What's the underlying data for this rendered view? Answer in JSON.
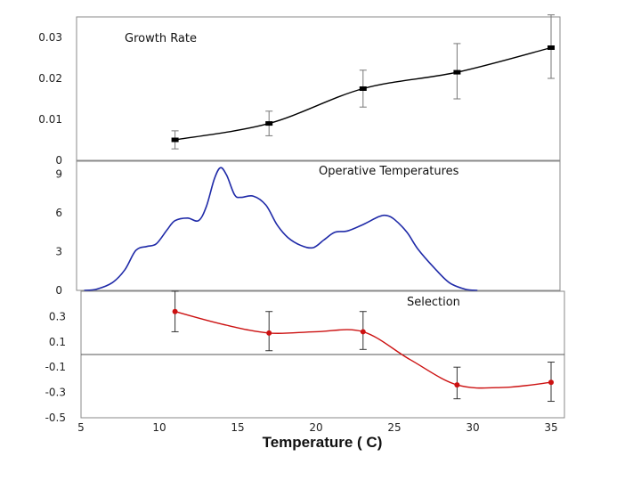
{
  "chart_data": [
    {
      "type": "line",
      "title": "Growth Rate",
      "ylim": [
        0,
        0.035
      ],
      "yticks": [
        0,
        0.01,
        0.02,
        0.03
      ],
      "ytick_labels": [
        "0",
        "0.01",
        "0.02",
        "0.03"
      ],
      "series": [
        {
          "name": "Growth Rate",
          "color": "#000000",
          "x": [
            11,
            17,
            23,
            29,
            35
          ],
          "y": [
            0.005,
            0.009,
            0.0175,
            0.0215,
            0.0275
          ],
          "err_low": [
            0.0028,
            0.006,
            0.013,
            0.015,
            0.02
          ],
          "err_high": [
            0.0072,
            0.012,
            0.022,
            0.0285,
            0.0355
          ]
        }
      ]
    },
    {
      "type": "area",
      "title": "Operative Temperatures",
      "ylim": [
        0,
        10
      ],
      "yticks": [
        0,
        3,
        6,
        9
      ],
      "ytick_labels": [
        "0",
        "3",
        "6",
        "9"
      ],
      "series": [
        {
          "name": "Operative Temperatures",
          "color": "#1f2aa8",
          "x": [
            5.2,
            6,
            7,
            7.8,
            8.5,
            9.2,
            9.8,
            10.5,
            11,
            11.8,
            12.5,
            13,
            13.5,
            13.9,
            14.3,
            14.8,
            15.2,
            16,
            16.8,
            17.5,
            18.2,
            19,
            19.8,
            20.5,
            21.2,
            22,
            23,
            24,
            24.5,
            25,
            25.8,
            26.5,
            27.5,
            28.5,
            29.5,
            30.3
          ],
          "y": [
            0,
            0.1,
            0.6,
            1.6,
            3.1,
            3.4,
            3.6,
            4.7,
            5.4,
            5.6,
            5.4,
            6.5,
            8.6,
            9.5,
            8.9,
            7.4,
            7.2,
            7.3,
            6.6,
            5.1,
            4.1,
            3.5,
            3.3,
            3.9,
            4.5,
            4.6,
            5.1,
            5.7,
            5.8,
            5.5,
            4.5,
            3.2,
            1.8,
            0.6,
            0.1,
            0
          ]
        }
      ]
    },
    {
      "type": "line",
      "title": "Selection",
      "xlabel": "Temperature ( C)",
      "xlim": [
        5,
        35
      ],
      "xticks": [
        5,
        10,
        15,
        20,
        25,
        30,
        35
      ],
      "xtick_labels": [
        "5",
        "10",
        "15",
        "20",
        "25",
        "30",
        "35"
      ],
      "ylim": [
        -0.5,
        0.5
      ],
      "yticks": [
        -0.5,
        -0.3,
        -0.1,
        0.1,
        0.3
      ],
      "ytick_labels": [
        "-0.5",
        "-0.3",
        "-0.1",
        "0.1",
        "0.3"
      ],
      "reference_line": 0,
      "series": [
        {
          "name": "Selection",
          "color": "#cc1111",
          "curve_x": [
            11,
            14,
            17,
            20,
            23,
            26,
            29,
            32,
            35
          ],
          "curve_y": [
            0.34,
            0.24,
            0.17,
            0.18,
            0.18,
            -0.04,
            -0.24,
            -0.26,
            -0.22
          ],
          "x": [
            11,
            17,
            23,
            29,
            35
          ],
          "y": [
            0.34,
            0.17,
            0.18,
            -0.24,
            -0.22
          ],
          "err_low": [
            0.18,
            0.03,
            0.04,
            -0.35,
            -0.37
          ],
          "err_high": [
            0.5,
            0.34,
            0.34,
            -0.1,
            -0.06
          ]
        }
      ]
    }
  ]
}
